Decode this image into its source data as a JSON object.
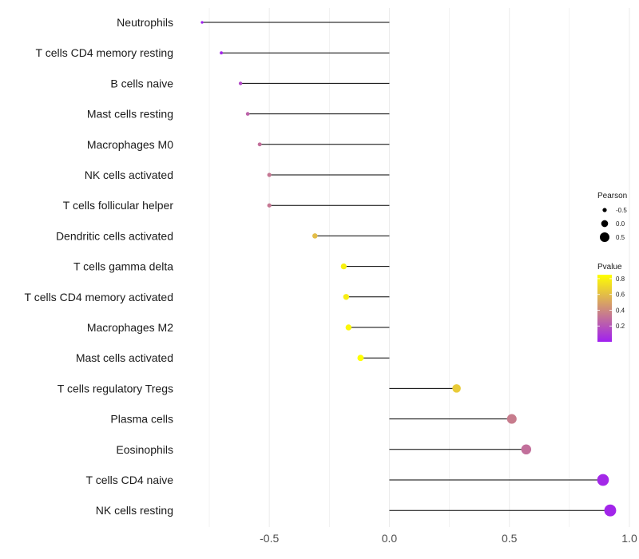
{
  "chart_data": {
    "type": "lollipop",
    "title": "",
    "xlabel": "",
    "ylabel": "",
    "xlim": [
      -0.85,
      1.0
    ],
    "x_ticks": [
      -0.5,
      0.0,
      0.5,
      1.0
    ],
    "x_tick_labels": [
      "-0.5",
      "0.0",
      "0.5",
      "1.0"
    ],
    "grid": true,
    "categories": [
      "Neutrophils",
      "T cells CD4 memory resting",
      "B cells naive",
      "Mast cells resting",
      "Macrophages M0",
      "NK cells activated",
      "T cells follicular helper",
      "Dendritic cells activated",
      "T cells gamma delta",
      "T cells CD4 memory activated",
      "Macrophages M2",
      "Mast cells activated",
      "T cells regulatory  Tregs",
      "Plasma cells",
      "Eosinophils",
      "T cells CD4 naive",
      "NK cells resting"
    ],
    "pearson": [
      -0.78,
      -0.7,
      -0.62,
      -0.59,
      -0.54,
      -0.5,
      -0.5,
      -0.31,
      -0.19,
      -0.18,
      -0.17,
      -0.12,
      0.28,
      0.51,
      0.57,
      0.89,
      0.92
    ],
    "pvalue": [
      0.0,
      0.03,
      0.15,
      0.25,
      0.3,
      0.33,
      0.33,
      0.6,
      0.8,
      0.78,
      0.82,
      0.85,
      0.65,
      0.35,
      0.3,
      0.03,
      0.02
    ],
    "size_legend": {
      "title": "Pearson",
      "values": [
        -0.5,
        0.0,
        0.5
      ],
      "labels": [
        "-0.5",
        "0.0",
        "0.5"
      ]
    },
    "color_legend": {
      "title": "Pvalue",
      "range": [
        0.0,
        0.85
      ],
      "ticks": [
        0.2,
        0.4,
        0.6,
        0.8
      ],
      "labels": [
        "0.2",
        "0.4",
        "0.6",
        "0.8"
      ],
      "low_color": "#A020F0",
      "high_color": "#FFFF00"
    },
    "colors": {
      "gridline": "#ebebeb",
      "segment": "#000000"
    }
  }
}
